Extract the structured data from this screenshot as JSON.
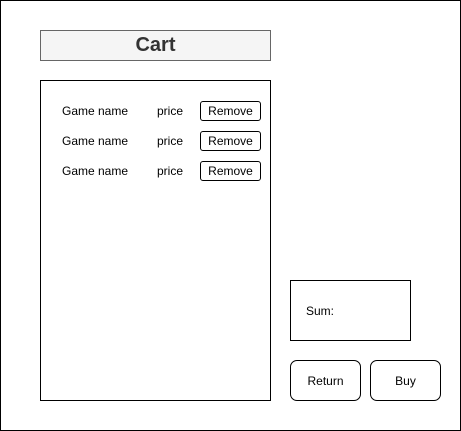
{
  "header": {
    "title": "Cart"
  },
  "cart": {
    "items": [
      {
        "name": "Game name",
        "price": "price",
        "remove_label": "Remove"
      },
      {
        "name": "Game name",
        "price": "price",
        "remove_label": "Remove"
      },
      {
        "name": "Game name",
        "price": "price",
        "remove_label": "Remove"
      }
    ]
  },
  "summary": {
    "sum_label": "Sum:"
  },
  "actions": {
    "return_label": "Return",
    "buy_label": "Buy"
  }
}
